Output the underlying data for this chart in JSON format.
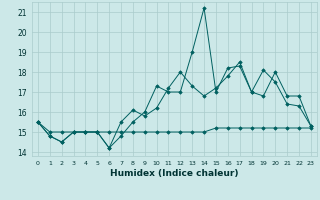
{
  "xlabel": "Humidex (Indice chaleur)",
  "xlim": [
    -0.5,
    23.5
  ],
  "ylim": [
    13.8,
    21.5
  ],
  "yticks": [
    14,
    15,
    16,
    17,
    18,
    19,
    20,
    21
  ],
  "xticks": [
    0,
    1,
    2,
    3,
    4,
    5,
    6,
    7,
    8,
    9,
    10,
    11,
    12,
    13,
    14,
    15,
    16,
    17,
    18,
    19,
    20,
    21,
    22,
    23
  ],
  "bg_color": "#cce8e8",
  "grid_color": "#aacccc",
  "line_color": "#006060",
  "series1": [
    15.5,
    14.8,
    14.5,
    15.0,
    15.0,
    15.0,
    14.2,
    14.8,
    15.5,
    16.0,
    17.3,
    17.0,
    17.0,
    19.0,
    21.2,
    17.0,
    18.2,
    18.3,
    17.0,
    18.1,
    17.5,
    16.4,
    16.3,
    15.3
  ],
  "series2": [
    15.5,
    14.8,
    14.5,
    15.0,
    15.0,
    15.0,
    14.2,
    15.5,
    16.1,
    15.8,
    16.2,
    17.2,
    18.0,
    17.3,
    16.8,
    17.2,
    17.8,
    18.5,
    17.0,
    16.8,
    18.0,
    16.8,
    16.8,
    15.3
  ],
  "series3": [
    15.5,
    15.0,
    15.0,
    15.0,
    15.0,
    15.0,
    15.0,
    15.0,
    15.0,
    15.0,
    15.0,
    15.0,
    15.0,
    15.0,
    15.0,
    15.2,
    15.2,
    15.2,
    15.2,
    15.2,
    15.2,
    15.2,
    15.2,
    15.2
  ]
}
